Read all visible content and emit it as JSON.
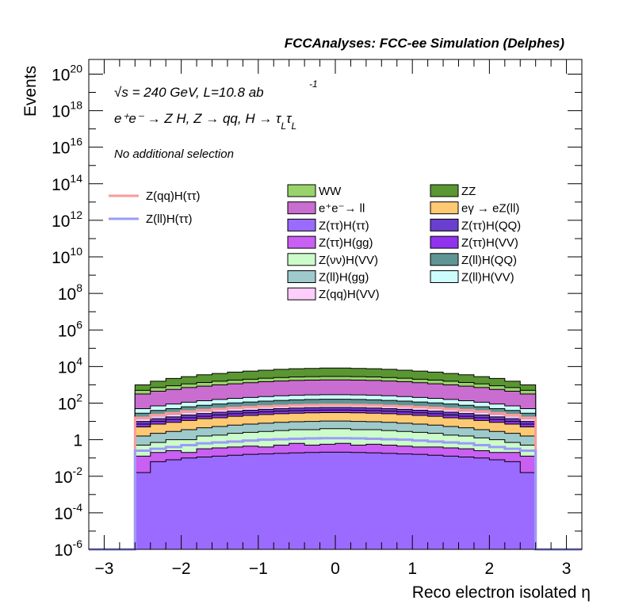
{
  "chart_data": {
    "type": "area",
    "title": "FCCAnalyses: FCC-ee Simulation (Delphes)",
    "xlabel": "Reco electron isolated η",
    "ylabel": "Events",
    "xlim": [
      -3.2,
      3.2
    ],
    "ylim_log10": [
      -6,
      20.8
    ],
    "yscale": "log",
    "x_ticks": [
      "−3",
      "−2",
      "−1",
      "0",
      "1",
      "2",
      "3"
    ],
    "x_tick_values": [
      -3,
      -2,
      -1,
      0,
      1,
      2,
      3
    ],
    "y_ticks": [
      {
        "base": "10",
        "exp": "20",
        "value": 20
      },
      {
        "base": "10",
        "exp": "18",
        "value": 18
      },
      {
        "base": "10",
        "exp": "16",
        "value": 16
      },
      {
        "base": "10",
        "exp": "14",
        "value": 14
      },
      {
        "base": "10",
        "exp": "12",
        "value": 12
      },
      {
        "base": "10",
        "exp": "10",
        "value": 10
      },
      {
        "base": "10",
        "exp": "8",
        "value": 8
      },
      {
        "base": "10",
        "exp": "6",
        "value": 6
      },
      {
        "base": "10",
        "exp": "4",
        "value": 4
      },
      {
        "base": "10",
        "exp": "2",
        "value": 2
      },
      {
        "base": "1",
        "exp": "",
        "value": 0
      },
      {
        "base": "10",
        "exp": "-2",
        "value": -2
      },
      {
        "base": "10",
        "exp": "-4",
        "value": -4
      },
      {
        "base": "10",
        "exp": "-6",
        "value": -6
      }
    ],
    "annotations": {
      "energy_sqrt": "√s",
      "energy_rest": " = 240 GeV, L=10.8 ab",
      "energy_exp": "-1",
      "process": "e⁺e⁻ → Z H, Z → qq, H → τ",
      "process_sub1": "L",
      "process_tau": "τ",
      "process_sub2": "L",
      "selection": "No additional selection"
    },
    "bin_edges": [
      -2.6,
      -2.4,
      -2.2,
      -2.0,
      -1.8,
      -1.6,
      -1.4,
      -1.2,
      -1.0,
      -0.8,
      -0.6,
      -0.4,
      -0.2,
      0.0,
      0.2,
      0.4,
      0.6,
      0.8,
      1.0,
      1.2,
      1.4,
      1.6,
      1.8,
      2.0,
      2.2,
      2.4,
      2.6
    ],
    "stack_order_bottom_to_top": [
      "Z(ττ)H(ττ)",
      "Z(ττ)H(gg)",
      "Z(νν)H(VV)",
      "Z(ll)H(gg)",
      "eγ → eZ(ll)",
      "Z(ττ)H(VV)",
      "Z(ττ)H(QQ)",
      "Z(qq)H(VV)",
      "Z(ll)H(QQ)",
      "Z(ll)H(VV)",
      "e⁺e⁻→ ll",
      "WW",
      "ZZ"
    ],
    "stack_log10_cumulative": {
      "Z(ττ)H(ττ)": [
        -1.8,
        -1.2,
        -1.1,
        -1.0,
        -0.95,
        -0.9,
        -0.85,
        -0.8,
        -0.78,
        -0.75,
        -0.72,
        -0.7,
        -0.68,
        -0.68,
        -0.7,
        -0.72,
        -0.75,
        -0.78,
        -0.8,
        -0.85,
        -0.9,
        -0.95,
        -1.0,
        -1.1,
        -1.2,
        -1.8
      ],
      "Z(ττ)H(gg)": [
        -0.9,
        -0.7,
        -0.6,
        -0.7,
        -0.5,
        -0.45,
        -0.4,
        -0.35,
        -0.4,
        -0.3,
        -0.2,
        -0.3,
        -0.25,
        -0.2,
        -0.3,
        -0.25,
        -0.3,
        -0.35,
        -0.4,
        -0.4,
        -0.45,
        -0.5,
        -0.6,
        -0.7,
        -0.7,
        -0.9
      ],
      "Z(νν)H(VV)": [
        -0.3,
        -0.15,
        0.0,
        0.0,
        0.2,
        0.25,
        0.35,
        0.4,
        0.45,
        0.5,
        0.55,
        0.55,
        0.6,
        0.6,
        0.55,
        0.55,
        0.5,
        0.45,
        0.4,
        0.35,
        0.25,
        0.2,
        0.1,
        0.0,
        -0.15,
        -0.3
      ],
      "Z(ll)H(gg)": [
        0.2,
        0.35,
        0.45,
        0.55,
        0.65,
        0.72,
        0.8,
        0.85,
        0.9,
        0.95,
        0.98,
        1.0,
        1.02,
        1.02,
        1.0,
        0.98,
        0.95,
        0.9,
        0.85,
        0.8,
        0.72,
        0.65,
        0.55,
        0.45,
        0.35,
        0.2
      ],
      "eγ → eZ(ll)": [
        0.7,
        0.85,
        0.95,
        1.05,
        1.15,
        1.2,
        1.28,
        1.33,
        1.38,
        1.42,
        1.45,
        1.47,
        1.48,
        1.48,
        1.47,
        1.45,
        1.42,
        1.38,
        1.33,
        1.28,
        1.2,
        1.15,
        1.05,
        0.95,
        0.85,
        0.7
      ],
      "Z(ττ)H(VV)": [
        0.85,
        1.0,
        1.1,
        1.2,
        1.28,
        1.35,
        1.42,
        1.47,
        1.52,
        1.56,
        1.59,
        1.61,
        1.62,
        1.62,
        1.61,
        1.59,
        1.56,
        1.52,
        1.47,
        1.42,
        1.35,
        1.28,
        1.2,
        1.1,
        1.0,
        0.85
      ],
      "Z(ττ)H(QQ)": [
        1.0,
        1.15,
        1.25,
        1.35,
        1.43,
        1.5,
        1.56,
        1.61,
        1.66,
        1.7,
        1.73,
        1.75,
        1.76,
        1.76,
        1.75,
        1.73,
        1.7,
        1.66,
        1.61,
        1.56,
        1.5,
        1.43,
        1.35,
        1.25,
        1.15,
        1.0
      ],
      "Z(qq)H(VV)": [
        1.15,
        1.3,
        1.4,
        1.5,
        1.58,
        1.65,
        1.72,
        1.77,
        1.82,
        1.86,
        1.89,
        1.91,
        1.92,
        1.92,
        1.91,
        1.89,
        1.86,
        1.82,
        1.77,
        1.72,
        1.65,
        1.58,
        1.5,
        1.4,
        1.3,
        1.15
      ],
      "Z(ll)H(QQ)": [
        1.45,
        1.6,
        1.7,
        1.8,
        1.88,
        1.95,
        2.01,
        2.06,
        2.11,
        2.15,
        2.18,
        2.2,
        2.21,
        2.21,
        2.2,
        2.18,
        2.15,
        2.11,
        2.06,
        2.01,
        1.95,
        1.88,
        1.8,
        1.7,
        1.6,
        1.45
      ],
      "Z(ll)H(VV)": [
        1.7,
        1.85,
        1.95,
        2.05,
        2.13,
        2.2,
        2.26,
        2.31,
        2.36,
        2.4,
        2.43,
        2.45,
        2.46,
        2.46,
        2.45,
        2.43,
        2.4,
        2.36,
        2.31,
        2.26,
        2.2,
        2.13,
        2.05,
        1.95,
        1.85,
        1.7
      ],
      "e⁺e⁻→ ll": [
        2.5,
        2.65,
        2.75,
        2.85,
        2.93,
        3.0,
        3.06,
        3.12,
        3.17,
        3.21,
        3.24,
        3.26,
        3.27,
        3.27,
        3.26,
        3.24,
        3.21,
        3.17,
        3.12,
        3.06,
        3.0,
        2.93,
        2.85,
        2.75,
        2.65,
        2.5
      ],
      "WW": [
        2.7,
        2.85,
        2.95,
        3.05,
        3.13,
        3.2,
        3.26,
        3.31,
        3.36,
        3.4,
        3.43,
        3.45,
        3.46,
        3.46,
        3.45,
        3.43,
        3.4,
        3.36,
        3.31,
        3.26,
        3.2,
        3.13,
        3.05,
        2.95,
        2.85,
        2.7
      ],
      "ZZ": [
        3.0,
        3.2,
        3.35,
        3.45,
        3.55,
        3.62,
        3.7,
        3.75,
        3.8,
        3.85,
        3.88,
        3.9,
        3.92,
        3.92,
        3.9,
        3.88,
        3.85,
        3.8,
        3.75,
        3.7,
        3.62,
        3.55,
        3.45,
        3.35,
        3.2,
        3.0
      ]
    },
    "signal_lines_log10": {
      "Z(qq)H(ττ)": [
        1.2,
        1.35,
        1.45,
        1.55,
        1.62,
        1.68,
        1.74,
        1.78,
        1.82,
        1.85,
        1.88,
        1.9,
        1.91,
        1.91,
        1.9,
        1.88,
        1.85,
        1.82,
        1.78,
        1.74,
        1.68,
        1.62,
        1.55,
        1.45,
        1.35,
        1.2
      ],
      "Z(ll)H(ττ)": [
        -0.6,
        -0.5,
        -0.4,
        -0.3,
        -0.2,
        -0.15,
        -0.1,
        -0.05,
        0.0,
        0.02,
        0.05,
        0.07,
        0.08,
        0.08,
        0.07,
        0.05,
        0.02,
        0.0,
        -0.05,
        -0.1,
        -0.15,
        -0.2,
        -0.3,
        -0.4,
        -0.5,
        -0.6
      ]
    },
    "legend_stack": [
      {
        "name": "WW",
        "color": "#99d36b"
      },
      {
        "name": "ZZ",
        "color": "#5a9631"
      },
      {
        "name": "e⁺e⁻→ ll",
        "color": "#c96dd0"
      },
      {
        "name": "eγ → eZ(ll)",
        "color": "#fdc972"
      },
      {
        "name": "Z(ττ)H(ττ)",
        "color": "#9b6bff"
      },
      {
        "name": "Z(ττ)H(QQ)",
        "color": "#6a3fd0"
      },
      {
        "name": "Z(ττ)H(gg)",
        "color": "#c95ff3"
      },
      {
        "name": "Z(ττ)H(VV)",
        "color": "#9133ee"
      },
      {
        "name": "Z(νν)H(VV)",
        "color": "#ccfcc9"
      },
      {
        "name": "Z(ll)H(QQ)",
        "color": "#5f9594"
      },
      {
        "name": "Z(ll)H(gg)",
        "color": "#9fcacc"
      },
      {
        "name": "Z(ll)H(VV)",
        "color": "#ccfdfc"
      },
      {
        "name": "Z(qq)H(VV)",
        "color": "#fdcefc"
      }
    ],
    "legend_lines": [
      {
        "name": "Z(qq)H(ττ)",
        "color": "#fa9b9b"
      },
      {
        "name": "Z(ll)H(ττ)",
        "color": "#9b9bfa"
      }
    ]
  }
}
